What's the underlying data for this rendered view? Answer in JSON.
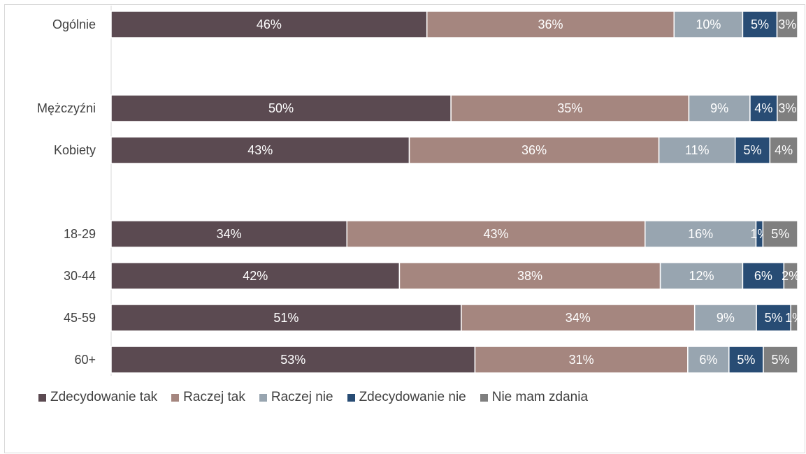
{
  "chart_data": {
    "type": "bar",
    "orientation": "horizontal",
    "stacked": true,
    "categories": [
      "Ogólnie",
      "Mężczyźni",
      "Kobiety",
      "18-29",
      "30-44",
      "45-59",
      "60+"
    ],
    "series": [
      {
        "name": "Zdecydowanie tak",
        "color": "#5b4a51",
        "values": [
          46,
          50,
          43,
          34,
          42,
          51,
          53
        ],
        "labels": [
          "46%",
          "50%",
          "43%",
          "34%",
          "42%",
          "51%",
          "53%"
        ]
      },
      {
        "name": "Raczej tak",
        "color": "#a5867f",
        "values": [
          36,
          35,
          36,
          43,
          38,
          34,
          31
        ],
        "labels": [
          "36%",
          "35%",
          "36%",
          "43%",
          "38%",
          "34%",
          "31%"
        ]
      },
      {
        "name": "Raczej nie",
        "color": "#98a5b0",
        "values": [
          10,
          9,
          11,
          16,
          12,
          9,
          6
        ],
        "labels": [
          "10%",
          "9%",
          "11%",
          "16%",
          "12%",
          "9%",
          "6%"
        ]
      },
      {
        "name": "Zdecydowanie nie",
        "color": "#284c74",
        "values": [
          5,
          4,
          5,
          1,
          6,
          5,
          5
        ],
        "labels": [
          "5%",
          "4%",
          "5%",
          "1%",
          "6%",
          "5%",
          "5%"
        ]
      },
      {
        "name": "Nie mam zdania",
        "color": "#7f7f7f",
        "values": [
          3,
          3,
          4,
          5,
          2,
          1,
          5
        ],
        "labels": [
          "3%",
          "3%",
          "4%",
          "5%",
          "2%",
          "1%",
          "5%"
        ]
      }
    ],
    "xlim": [
      0,
      100
    ],
    "legend_position": "bottom-left",
    "grid": false
  }
}
